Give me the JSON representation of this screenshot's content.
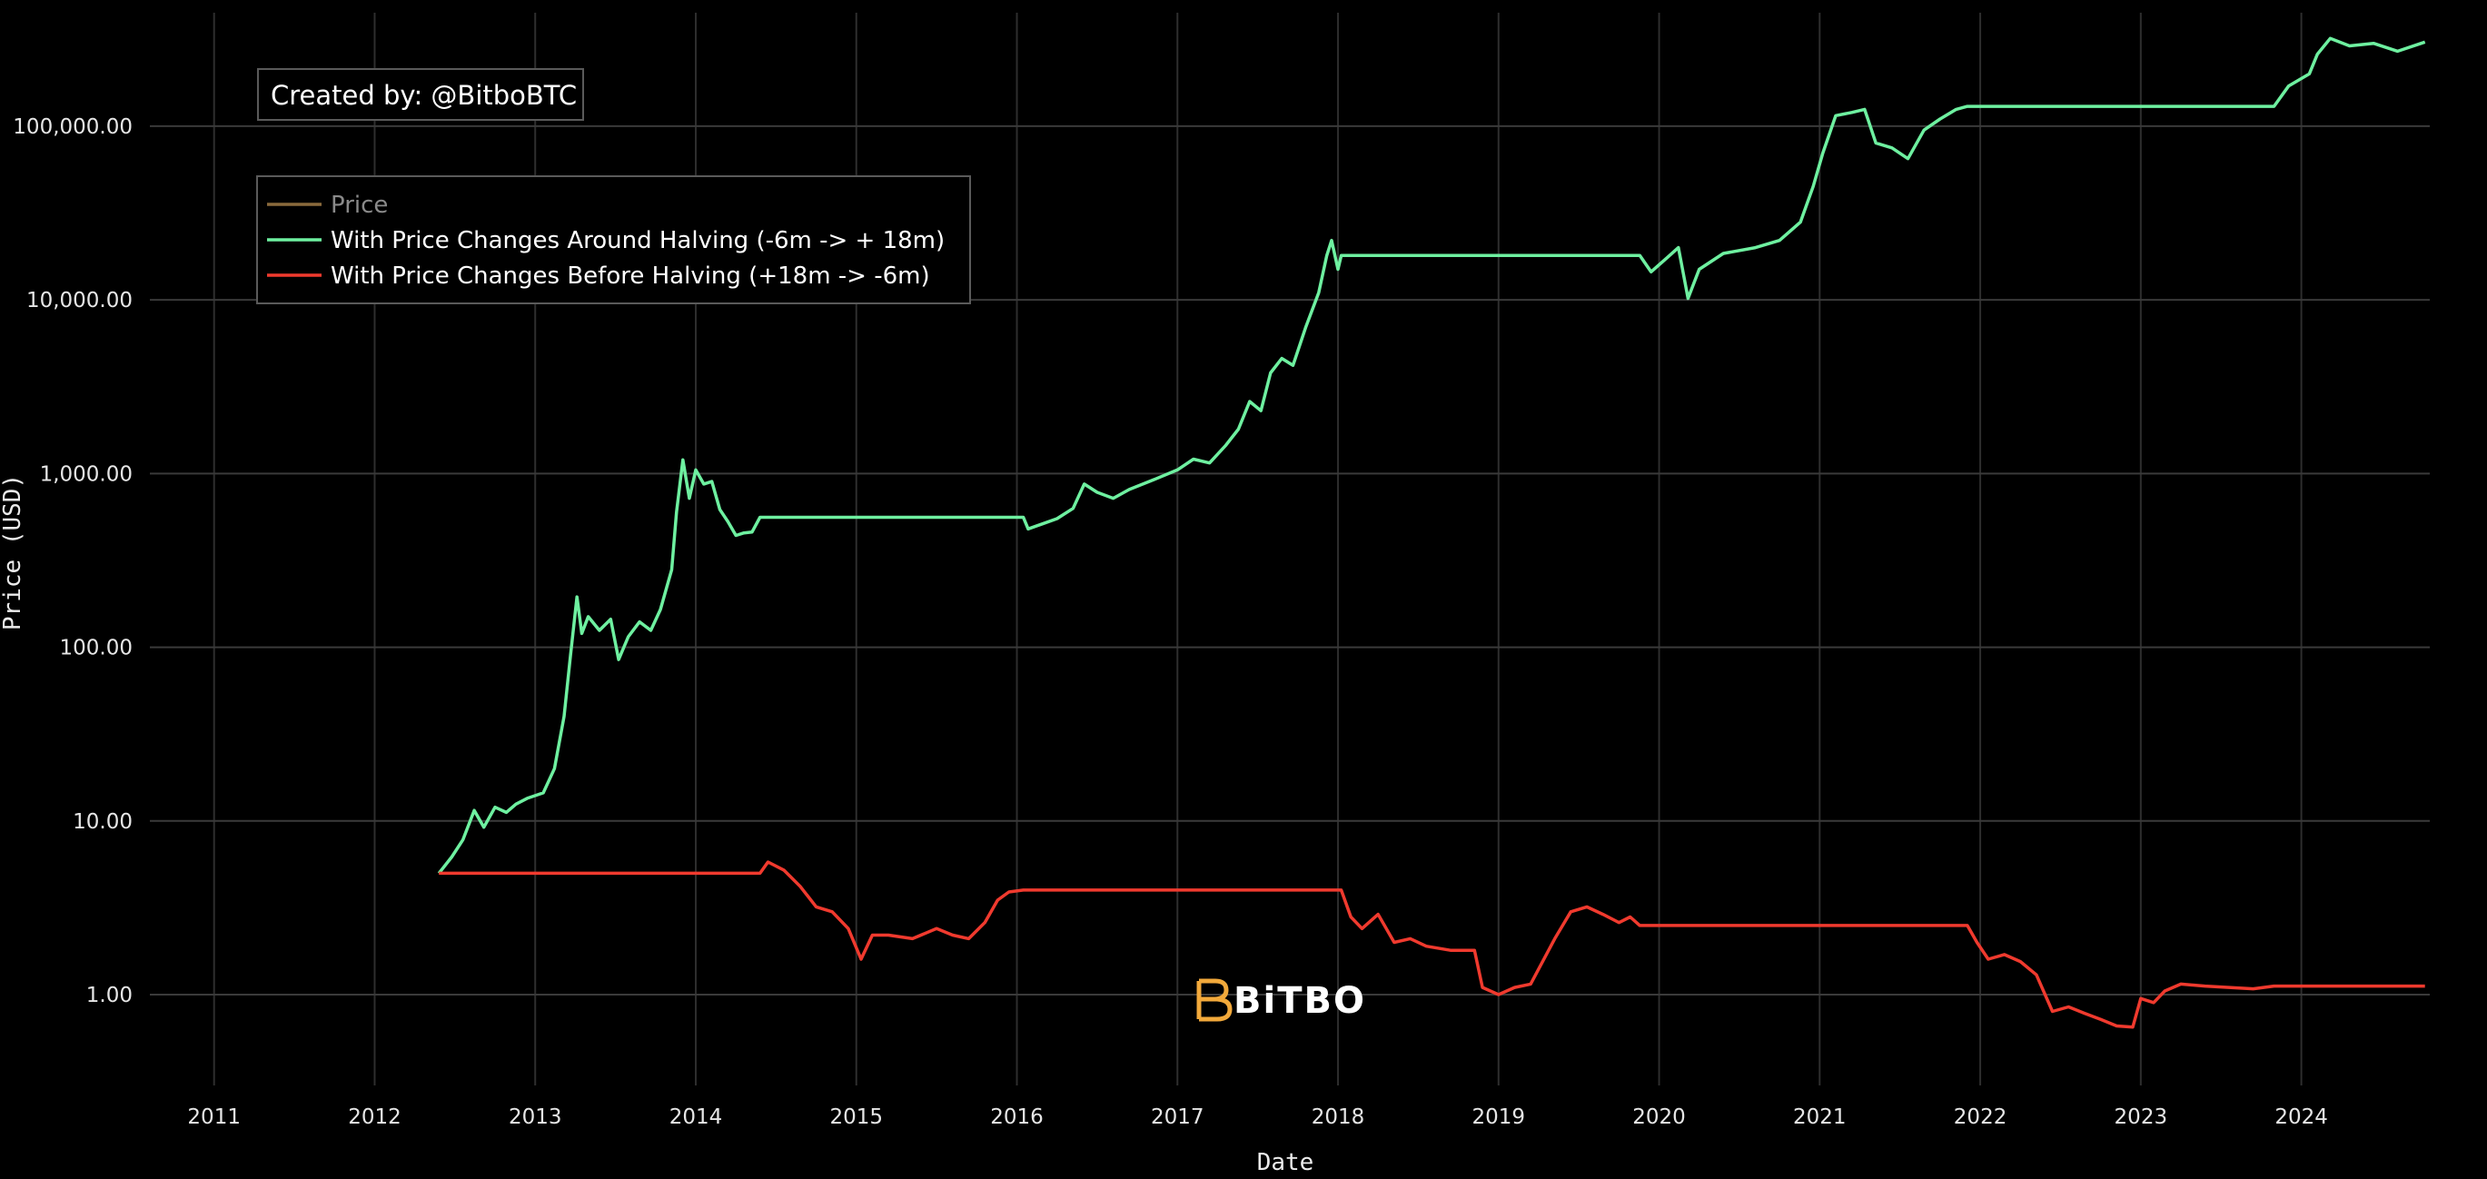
{
  "credit": "Created by: @BitboBTC",
  "logo": {
    "text": "BiTBO",
    "color": "#f2a93b"
  },
  "chart_data": {
    "type": "line",
    "title": "",
    "xlabel": "Date",
    "ylabel": "Price (USD)",
    "yscale": "log",
    "xlim": [
      2010.6,
      2024.8
    ],
    "ylim": [
      0.3,
      450000
    ],
    "grid": true,
    "legend_position": "top-left",
    "x_ticks": [
      "2011",
      "2012",
      "2013",
      "2014",
      "2015",
      "2016",
      "2017",
      "2018",
      "2019",
      "2020",
      "2021",
      "2022",
      "2023",
      "2024"
    ],
    "y_ticks": [
      {
        "value": 1,
        "label": "1.00"
      },
      {
        "value": 10,
        "label": "10.00"
      },
      {
        "value": 100,
        "label": "100.00"
      },
      {
        "value": 1000,
        "label": "1,000.00"
      },
      {
        "value": 10000,
        "label": "10,000.00"
      },
      {
        "value": 100000,
        "label": "100,000.00"
      }
    ],
    "series": [
      {
        "name": "Price",
        "color": "#8a6a3c",
        "visible": false,
        "points": []
      },
      {
        "name": "With Price Changes Around Halving (-6m -> + 18m)",
        "color": "#6ef0a0",
        "points": [
          [
            2012.4,
            5.0
          ],
          [
            2012.48,
            6.2
          ],
          [
            2012.55,
            7.8
          ],
          [
            2012.62,
            11.5
          ],
          [
            2012.68,
            9.2
          ],
          [
            2012.75,
            12.0
          ],
          [
            2012.82,
            11.2
          ],
          [
            2012.88,
            12.5
          ],
          [
            2012.95,
            13.5
          ],
          [
            2013.05,
            14.5
          ],
          [
            2013.12,
            20
          ],
          [
            2013.18,
            40
          ],
          [
            2013.22,
            90
          ],
          [
            2013.26,
            195
          ],
          [
            2013.29,
            120
          ],
          [
            2013.33,
            150
          ],
          [
            2013.4,
            125
          ],
          [
            2013.47,
            145
          ],
          [
            2013.52,
            85
          ],
          [
            2013.58,
            115
          ],
          [
            2013.65,
            140
          ],
          [
            2013.72,
            125
          ],
          [
            2013.78,
            165
          ],
          [
            2013.85,
            280
          ],
          [
            2013.88,
            600
          ],
          [
            2013.92,
            1200
          ],
          [
            2013.96,
            720
          ],
          [
            2014.0,
            1050
          ],
          [
            2014.05,
            870
          ],
          [
            2014.1,
            900
          ],
          [
            2014.15,
            620
          ],
          [
            2014.2,
            530
          ],
          [
            2014.25,
            440
          ],
          [
            2014.3,
            455
          ],
          [
            2014.35,
            460
          ],
          [
            2014.4,
            560
          ],
          [
            2016.04,
            560
          ],
          [
            2016.07,
            480
          ],
          [
            2016.15,
            510
          ],
          [
            2016.25,
            550
          ],
          [
            2016.35,
            630
          ],
          [
            2016.42,
            870
          ],
          [
            2016.5,
            780
          ],
          [
            2016.6,
            720
          ],
          [
            2016.7,
            810
          ],
          [
            2016.85,
            920
          ],
          [
            2017.0,
            1050
          ],
          [
            2017.1,
            1210
          ],
          [
            2017.2,
            1150
          ],
          [
            2017.3,
            1450
          ],
          [
            2017.38,
            1800
          ],
          [
            2017.45,
            2600
          ],
          [
            2017.52,
            2300
          ],
          [
            2017.58,
            3800
          ],
          [
            2017.65,
            4600
          ],
          [
            2017.72,
            4200
          ],
          [
            2017.8,
            7000
          ],
          [
            2017.88,
            11000
          ],
          [
            2017.93,
            18000
          ],
          [
            2017.96,
            22000
          ],
          [
            2018.0,
            15000
          ],
          [
            2018.02,
            18000
          ],
          [
            2019.88,
            18000
          ],
          [
            2019.95,
            14500
          ],
          [
            2020.05,
            17500
          ],
          [
            2020.12,
            20000
          ],
          [
            2020.18,
            10200
          ],
          [
            2020.25,
            15000
          ],
          [
            2020.4,
            18500
          ],
          [
            2020.6,
            20000
          ],
          [
            2020.75,
            22000
          ],
          [
            2020.88,
            28000
          ],
          [
            2020.96,
            45000
          ],
          [
            2021.02,
            70000
          ],
          [
            2021.1,
            115000
          ],
          [
            2021.2,
            120000
          ],
          [
            2021.28,
            125000
          ],
          [
            2021.35,
            80000
          ],
          [
            2021.45,
            75000
          ],
          [
            2021.55,
            65000
          ],
          [
            2021.65,
            95000
          ],
          [
            2021.75,
            110000
          ],
          [
            2021.85,
            125000
          ],
          [
            2021.92,
            130000
          ],
          [
            2023.83,
            130000
          ],
          [
            2023.92,
            170000
          ],
          [
            2024.05,
            200000
          ],
          [
            2024.1,
            260000
          ],
          [
            2024.18,
            320000
          ],
          [
            2024.3,
            290000
          ],
          [
            2024.45,
            300000
          ],
          [
            2024.6,
            270000
          ],
          [
            2024.77,
            305000
          ]
        ]
      },
      {
        "name": "With Price Changes Before Halving (+18m -> -6m)",
        "color": "#f03a2e",
        "points": [
          [
            2012.4,
            5.0
          ],
          [
            2014.4,
            5.0
          ],
          [
            2014.45,
            5.8
          ],
          [
            2014.55,
            5.2
          ],
          [
            2014.65,
            4.2
          ],
          [
            2014.75,
            3.2
          ],
          [
            2014.85,
            3.0
          ],
          [
            2014.95,
            2.4
          ],
          [
            2015.03,
            1.6
          ],
          [
            2015.1,
            2.2
          ],
          [
            2015.2,
            2.2
          ],
          [
            2015.35,
            2.1
          ],
          [
            2015.5,
            2.4
          ],
          [
            2015.6,
            2.2
          ],
          [
            2015.7,
            2.1
          ],
          [
            2015.8,
            2.6
          ],
          [
            2015.88,
            3.5
          ],
          [
            2015.95,
            3.9
          ],
          [
            2016.04,
            4.0
          ],
          [
            2018.02,
            4.0
          ],
          [
            2018.08,
            2.8
          ],
          [
            2018.15,
            2.4
          ],
          [
            2018.25,
            2.9
          ],
          [
            2018.35,
            2.0
          ],
          [
            2018.45,
            2.1
          ],
          [
            2018.55,
            1.9
          ],
          [
            2018.7,
            1.8
          ],
          [
            2018.85,
            1.8
          ],
          [
            2018.9,
            1.1
          ],
          [
            2019.0,
            1.0
          ],
          [
            2019.1,
            1.1
          ],
          [
            2019.2,
            1.15
          ],
          [
            2019.35,
            2.1
          ],
          [
            2019.45,
            3.0
          ],
          [
            2019.55,
            3.2
          ],
          [
            2019.65,
            2.9
          ],
          [
            2019.75,
            2.6
          ],
          [
            2019.82,
            2.8
          ],
          [
            2019.88,
            2.5
          ],
          [
            2021.92,
            2.5
          ],
          [
            2021.98,
            2.0
          ],
          [
            2022.05,
            1.6
          ],
          [
            2022.15,
            1.7
          ],
          [
            2022.25,
            1.55
          ],
          [
            2022.35,
            1.3
          ],
          [
            2022.45,
            0.8
          ],
          [
            2022.55,
            0.85
          ],
          [
            2022.65,
            0.78
          ],
          [
            2022.75,
            0.72
          ],
          [
            2022.85,
            0.66
          ],
          [
            2022.95,
            0.65
          ],
          [
            2023.0,
            0.95
          ],
          [
            2023.08,
            0.9
          ],
          [
            2023.15,
            1.05
          ],
          [
            2023.25,
            1.15
          ],
          [
            2023.4,
            1.12
          ],
          [
            2023.55,
            1.1
          ],
          [
            2023.7,
            1.08
          ],
          [
            2023.83,
            1.12
          ],
          [
            2024.77,
            1.12
          ]
        ]
      }
    ]
  }
}
